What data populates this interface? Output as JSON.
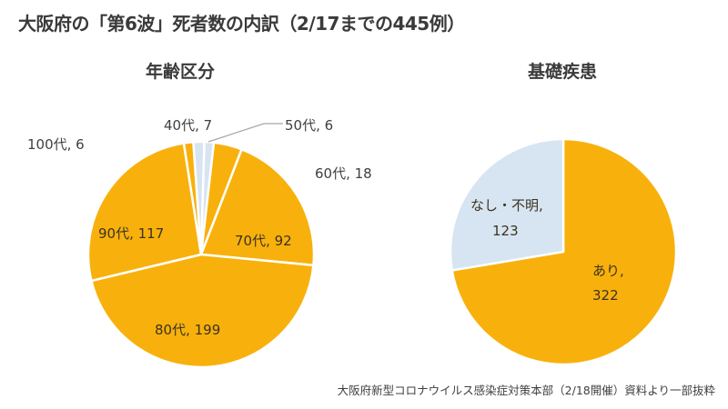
{
  "title": "大阪府の「第6波」死者数の内訳（2/17までの445例）",
  "footer": "大阪府新型コロナウイルス感染症対策本部（2/18開催）資料より一部抜粋",
  "colors": {
    "orange": "#F8B10C",
    "light_blue": "#D7E4F1",
    "text": "#404040"
  },
  "charts": {
    "age": {
      "title": "年齢区分",
      "labels": {
        "s40": "40代, 7",
        "s50": "50代, 6",
        "s60": "60代, 18",
        "s70": "70代, 92",
        "s80": "80代, 199",
        "s90": "90代, 117",
        "s100": "100代, 6"
      }
    },
    "condition": {
      "title": "基礎疾患",
      "labels": {
        "none_line1": "なし・不明,",
        "none_line2": "123",
        "yes_line1": "あり,",
        "yes_line2": "322"
      }
    }
  },
  "chart_data": [
    {
      "type": "pie",
      "title": "年齢区分",
      "categories": [
        "40代",
        "50代",
        "60代",
        "70代",
        "80代",
        "90代",
        "100代"
      ],
      "values": [
        7,
        6,
        18,
        92,
        199,
        117,
        6
      ],
      "colors": [
        "#D7E4F1",
        "#D7E4F1",
        "#F8B10C",
        "#F8B10C",
        "#F8B10C",
        "#F8B10C",
        "#F8B10C"
      ],
      "total": 445
    },
    {
      "type": "pie",
      "title": "基礎疾患",
      "categories": [
        "あり",
        "なし・不明"
      ],
      "values": [
        322,
        123
      ],
      "colors": [
        "#F8B10C",
        "#D7E4F1"
      ],
      "total": 445
    }
  ]
}
